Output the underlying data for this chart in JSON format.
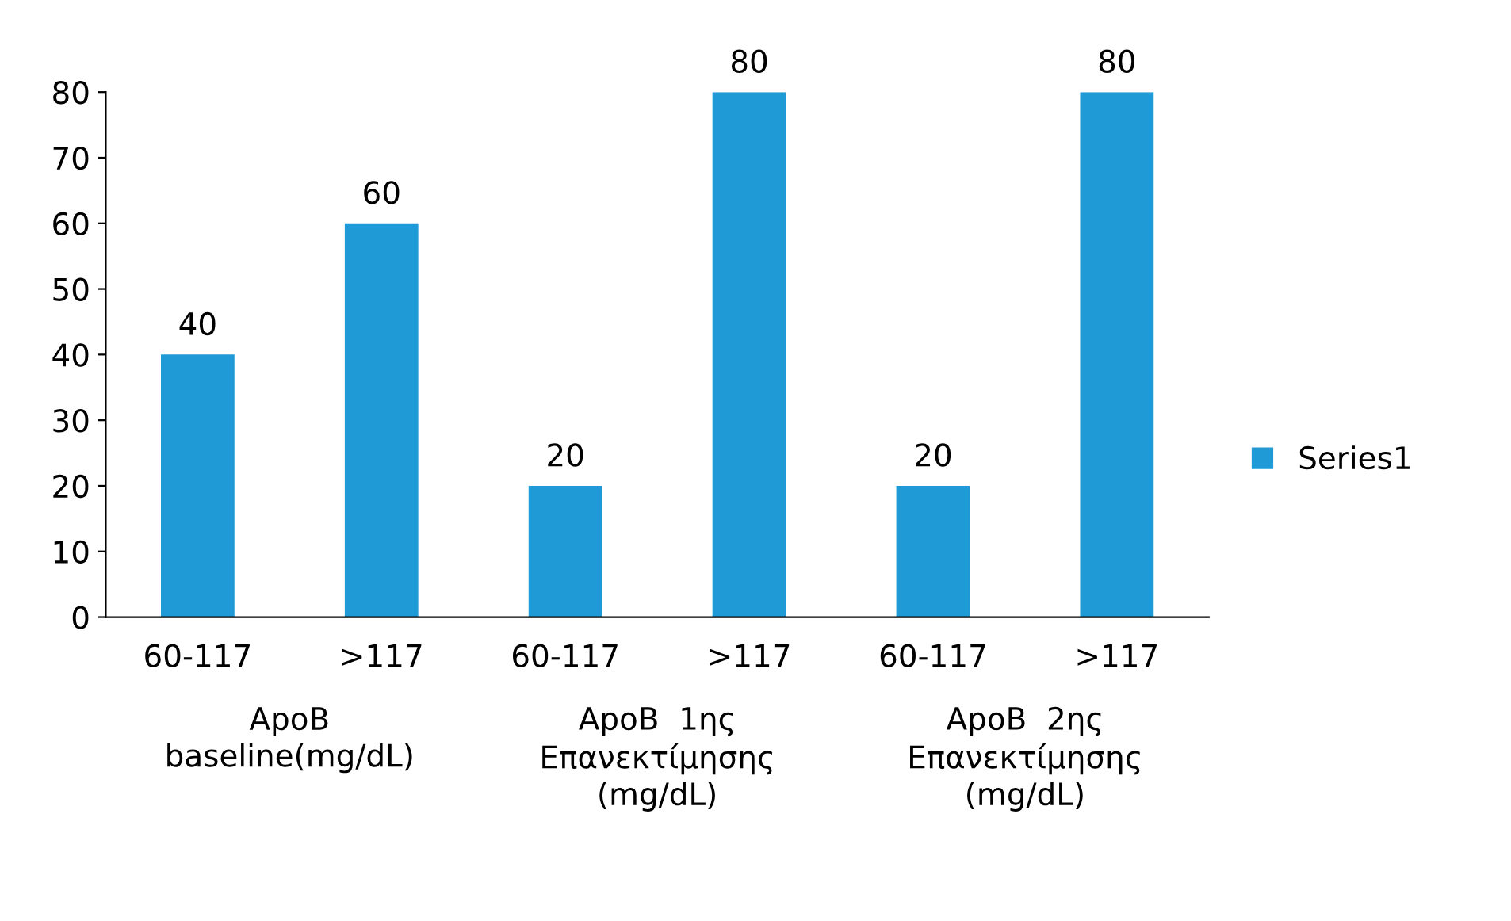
{
  "chart_data": {
    "type": "bar",
    "categories": [
      "60-117",
      ">117",
      "60-117",
      ">117",
      "60-117",
      ">117"
    ],
    "series": [
      {
        "name": "Series1",
        "color": "#1f9ad6",
        "values": [
          40,
          60,
          20,
          80,
          20,
          80
        ]
      }
    ],
    "annotations": [
      "ApoB\nbaseline(mg/dL)",
      "ApoB  1ης\nΕπανεκτίμησης\n(mg/dL)",
      "ApoB  2ης\nΕπανεκτίμησης\n(mg/dL)"
    ],
    "ylim": [
      0,
      80
    ],
    "yticks": [
      0,
      10,
      20,
      30,
      40,
      50,
      60,
      70,
      80
    ],
    "data_labels": true,
    "legend": "right",
    "grid": false
  }
}
